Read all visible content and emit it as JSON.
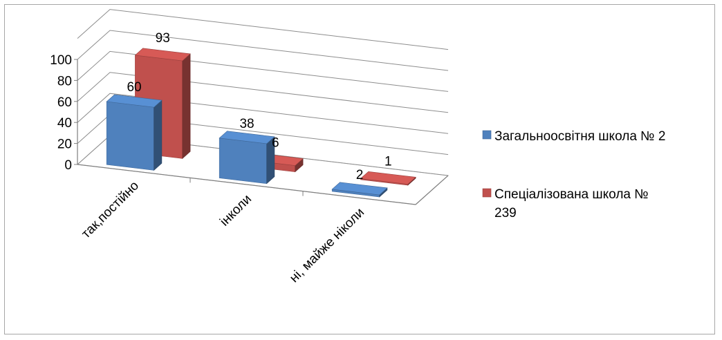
{
  "chart_data": {
    "type": "bar",
    "categories": [
      "так,постійно",
      "інколи",
      "ні, майже ніколи"
    ],
    "series": [
      {
        "name": "Загальноосвітня школа № 2",
        "values": [
          60,
          38,
          2
        ],
        "color": "#4f81bd"
      },
      {
        "name": "Спеціалізована школа № 239",
        "values": [
          93,
          6,
          1
        ],
        "color": "#c0504d"
      }
    ],
    "y_ticks": [
      "0",
      "20",
      "40",
      "60",
      "80",
      "100"
    ],
    "ylim": [
      0,
      100
    ],
    "grid": true,
    "legend_position": "right",
    "style": "3d-clustered-column"
  },
  "legend": {
    "items": [
      {
        "lines": [
          "Загальноосвітня школа № 2"
        ]
      },
      {
        "lines": [
          "Спеціалізована школа №",
          "239"
        ]
      }
    ]
  }
}
